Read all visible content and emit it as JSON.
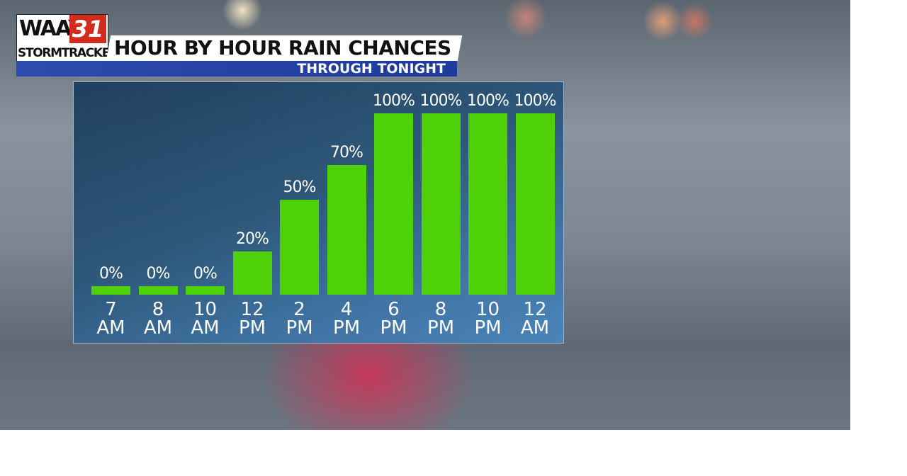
{
  "header": {
    "logo_name": "WAAY",
    "logo_number": "31",
    "logo_sub": "STORMTRACKER"
  },
  "chart_data": {
    "type": "bar",
    "title": "HOUR BY HOUR RAIN CHANCES",
    "subtitle": "THROUGH TONIGHT",
    "categories": [
      "7 AM",
      "8 AM",
      "10 AM",
      "12 PM",
      "2 PM",
      "4 PM",
      "6 PM",
      "8 PM",
      "10 PM",
      "12 AM"
    ],
    "values": [
      0,
      0,
      0,
      20,
      50,
      70,
      100,
      100,
      100,
      100
    ],
    "value_labels": [
      "0%",
      "0%",
      "0%",
      "20%",
      "50%",
      "70%",
      "100%",
      "100%",
      "100%",
      "100%"
    ],
    "color": "#4fd10a"
  }
}
